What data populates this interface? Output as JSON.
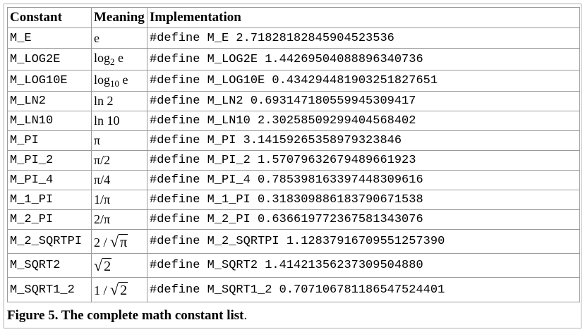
{
  "table": {
    "headers": [
      "Constant",
      "Meaning",
      "Implementation"
    ],
    "rows": [
      {
        "name": "M_E",
        "meaning": "e",
        "impl": "#define M_E 2.71828182845904523536"
      },
      {
        "name": "M_LOG2E",
        "meaning_base": "log",
        "meaning_sub": "2",
        "meaning_arg": "e",
        "impl": "#define M_LOG2E 1.44269504088896340736"
      },
      {
        "name": "M_LOG10E",
        "meaning_base": "log",
        "meaning_sub": "10",
        "meaning_arg": "e",
        "impl": "#define M_LOG10E 0.434294481903251827651"
      },
      {
        "name": "M_LN2",
        "meaning": "ln 2",
        "impl": "#define M_LN2 0.693147180559945309417"
      },
      {
        "name": "M_LN10",
        "meaning": "ln 10",
        "impl": "#define M_LN10 2.30258509299404568402"
      },
      {
        "name": "M_PI",
        "meaning": "π",
        "impl": "#define M_PI 3.14159265358979323846"
      },
      {
        "name": "M_PI_2",
        "meaning": "π/2",
        "impl": "#define M_PI_2 1.57079632679489661923"
      },
      {
        "name": "M_PI_4",
        "meaning": "π/4",
        "impl": "#define M_PI_4 0.785398163397448309616"
      },
      {
        "name": "M_1_PI",
        "meaning": "1/π",
        "impl": "#define M_1_PI 0.318309886183790671538"
      },
      {
        "name": "M_2_PI",
        "meaning": "2/π",
        "impl": "#define M_2_PI 0.636619772367581343076"
      },
      {
        "name": "M_2_SQRTPI",
        "meaning_num": "2",
        "meaning_slash": "/",
        "meaning_surd": "√",
        "meaning_radicand": "π",
        "impl": "#define M_2_SQRTPI 1.12837916709551257390"
      },
      {
        "name": "M_SQRT2",
        "meaning_surd": "√",
        "meaning_radicand": "2",
        "impl": "#define M_SQRT2 1.41421356237309504880"
      },
      {
        "name": "M_SQRT1_2",
        "meaning_num": "1",
        "meaning_slash": "/",
        "meaning_surd": "√",
        "meaning_radicand": "2",
        "impl": "#define M_SQRT1_2 0.707106781186547524401"
      }
    ]
  },
  "caption": {
    "label": "Figure 5. The complete math constant list",
    "suffix": "."
  }
}
